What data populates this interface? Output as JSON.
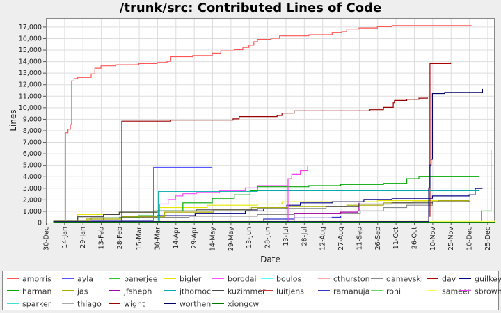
{
  "chart_data": {
    "type": "line",
    "title": "/trunk/src: Contributed Lines of Code",
    "xlabel": "Date",
    "ylabel": "Lines",
    "ylim": [
      0,
      17750
    ],
    "xlim": [
      "2007-12-30",
      "2008-12-31"
    ],
    "y_ticks": [
      0,
      1000,
      2000,
      3000,
      4000,
      5000,
      6000,
      7000,
      8000,
      9000,
      10000,
      11000,
      12000,
      13000,
      14000,
      15000,
      16000,
      17000
    ],
    "y_tick_labels": [
      "0",
      "1,000",
      "2,000",
      "3,000",
      "4,000",
      "5,000",
      "6,000",
      "7,000",
      "8,000",
      "9,000",
      "10,000",
      "11,000",
      "12,000",
      "13,000",
      "14,000",
      "15,000",
      "16,000",
      "17,000"
    ],
    "x_ticks": [
      {
        "date": "2007-12-30",
        "label": "30-Dec"
      },
      {
        "date": "2008-01-14",
        "label": "14-Jan"
      },
      {
        "date": "2008-01-29",
        "label": "29-Jan"
      },
      {
        "date": "2008-02-13",
        "label": "13-Feb"
      },
      {
        "date": "2008-02-28",
        "label": "28-Feb"
      },
      {
        "date": "2008-03-15",
        "label": "15-Mar"
      },
      {
        "date": "2008-03-30",
        "label": "30-Mar"
      },
      {
        "date": "2008-04-14",
        "label": "14-Apr"
      },
      {
        "date": "2008-04-29",
        "label": "29-Apr"
      },
      {
        "date": "2008-05-14",
        "label": "14-May"
      },
      {
        "date": "2008-05-29",
        "label": "29-May"
      },
      {
        "date": "2008-06-13",
        "label": "13-Jun"
      },
      {
        "date": "2008-06-28",
        "label": "28-Jun"
      },
      {
        "date": "2008-07-13",
        "label": "13-Jul"
      },
      {
        "date": "2008-07-28",
        "label": "28-Jul"
      },
      {
        "date": "2008-08-12",
        "label": "12-Aug"
      },
      {
        "date": "2008-08-27",
        "label": "27-Aug"
      },
      {
        "date": "2008-09-11",
        "label": "11-Sep"
      },
      {
        "date": "2008-09-26",
        "label": "26-Sep"
      },
      {
        "date": "2008-10-11",
        "label": "11-Oct"
      },
      {
        "date": "2008-10-26",
        "label": "26-Oct"
      },
      {
        "date": "2008-11-10",
        "label": "10-Nov"
      },
      {
        "date": "2008-11-25",
        "label": "25-Nov"
      },
      {
        "date": "2008-12-10",
        "label": "10-Dec"
      },
      {
        "date": "2008-12-25",
        "label": "25-Dec"
      }
    ],
    "grid": true,
    "legend_position": "bottom",
    "series": [
      {
        "name": "amorris",
        "color": "#ff5555",
        "points": [
          [
            "2008-01-15",
            0
          ],
          [
            "2008-01-15",
            7800
          ],
          [
            "2008-01-17",
            8100
          ],
          [
            "2008-01-19",
            8500
          ],
          [
            "2008-01-20",
            12300
          ],
          [
            "2008-01-22",
            12500
          ],
          [
            "2008-01-25",
            12600
          ],
          [
            "2008-02-05",
            12900
          ],
          [
            "2008-02-08",
            13400
          ],
          [
            "2008-02-13",
            13600
          ],
          [
            "2008-02-25",
            13700
          ],
          [
            "2008-03-15",
            13800
          ],
          [
            "2008-03-30",
            13900
          ],
          [
            "2008-04-07",
            14000
          ],
          [
            "2008-04-10",
            14400
          ],
          [
            "2008-04-28",
            14500
          ],
          [
            "2008-05-14",
            14700
          ],
          [
            "2008-05-21",
            14900
          ],
          [
            "2008-06-01",
            15000
          ],
          [
            "2008-06-08",
            15200
          ],
          [
            "2008-06-13",
            15400
          ],
          [
            "2008-06-17",
            15700
          ],
          [
            "2008-06-20",
            15900
          ],
          [
            "2008-07-01",
            16000
          ],
          [
            "2008-07-08",
            16200
          ],
          [
            "2008-08-01",
            16300
          ],
          [
            "2008-08-20",
            16500
          ],
          [
            "2008-08-28",
            16600
          ],
          [
            "2008-09-01",
            16800
          ],
          [
            "2008-09-11",
            16900
          ],
          [
            "2008-09-26",
            17000
          ],
          [
            "2008-10-08",
            17100
          ],
          [
            "2008-12-12",
            17100
          ]
        ]
      },
      {
        "name": "ayla",
        "color": "#5555ff",
        "points": [
          [
            "2008-02-01",
            150
          ],
          [
            "2008-03-27",
            150
          ],
          [
            "2008-03-27",
            4800
          ],
          [
            "2008-05-14",
            4800
          ]
        ]
      },
      {
        "name": "banerjee",
        "color": "#22cc22",
        "points": [
          [
            "2008-01-10",
            50
          ],
          [
            "2008-12-20",
            50
          ],
          [
            "2008-12-20",
            1000
          ],
          [
            "2008-12-25",
            1000
          ],
          [
            "2008-12-28",
            6300
          ]
        ]
      },
      {
        "name": "bigler",
        "color": "#e6e600",
        "points": [
          [
            "2008-01-05",
            150
          ],
          [
            "2008-01-20",
            150
          ],
          [
            "2008-01-25",
            700
          ],
          [
            "2008-02-28",
            900
          ],
          [
            "2008-04-01",
            1300
          ],
          [
            "2008-05-10",
            1500
          ],
          [
            "2008-06-05",
            1500
          ],
          [
            "2008-06-20",
            1600
          ],
          [
            "2008-07-10",
            1800
          ],
          [
            "2008-08-10",
            1800
          ],
          [
            "2008-09-26",
            1900
          ],
          [
            "2008-10-20",
            1900
          ],
          [
            "2008-12-10",
            2000
          ]
        ]
      },
      {
        "name": "borodai",
        "color": "#ff55ff",
        "points": [
          [
            "2008-01-05",
            30
          ],
          [
            "2008-04-01",
            30
          ],
          [
            "2008-04-01",
            1600
          ],
          [
            "2008-04-08",
            2000
          ],
          [
            "2008-04-14",
            2300
          ],
          [
            "2008-04-20",
            2500
          ],
          [
            "2008-05-01",
            2600
          ],
          [
            "2008-05-20",
            2800
          ],
          [
            "2008-06-10",
            3000
          ],
          [
            "2008-06-20",
            3200
          ],
          [
            "2008-07-15",
            3200
          ]
        ]
      },
      {
        "name": "boulos",
        "color": "#55ffff",
        "points": [
          [
            "2008-01-05",
            20
          ],
          [
            "2008-12-31",
            20
          ]
        ]
      },
      {
        "name": "cthurston",
        "color": "#ffaaaa",
        "points": [
          [
            "2008-01-05",
            10
          ],
          [
            "2008-12-31",
            10
          ]
        ]
      },
      {
        "name": "damevski",
        "color": "#888888",
        "points": [
          [
            "2008-01-05",
            150
          ],
          [
            "2008-02-05",
            150
          ],
          [
            "2008-02-05",
            400
          ],
          [
            "2008-02-28",
            450
          ],
          [
            "2008-04-25",
            550
          ],
          [
            "2008-06-20",
            700
          ],
          [
            "2008-07-20",
            800
          ],
          [
            "2008-09-12",
            1000
          ],
          [
            "2008-10-01",
            1300
          ],
          [
            "2008-10-20",
            1500
          ],
          [
            "2008-11-10",
            1800
          ],
          [
            "2008-12-10",
            1850
          ]
        ]
      },
      {
        "name": "dav",
        "color": "#aa0000",
        "points": [
          [
            "2008-11-08",
            500
          ],
          [
            "2008-11-08",
            13800
          ],
          [
            "2008-11-22",
            13800
          ],
          [
            "2008-11-25",
            13900
          ]
        ]
      },
      {
        "name": "guilkey",
        "color": "#000088",
        "points": [
          [
            "2008-01-05",
            80
          ],
          [
            "2008-03-01",
            80
          ],
          [
            "2008-03-01",
            500
          ],
          [
            "2008-03-30",
            600
          ],
          [
            "2008-04-30",
            800
          ],
          [
            "2008-06-10",
            1000
          ],
          [
            "2008-06-25",
            1200
          ],
          [
            "2008-07-10",
            1200
          ],
          [
            "2008-07-14",
            1500
          ],
          [
            "2008-07-25",
            1700
          ],
          [
            "2008-08-20",
            1800
          ],
          [
            "2008-09-15",
            2000
          ],
          [
            "2008-10-08",
            2100
          ],
          [
            "2008-11-10",
            2300
          ],
          [
            "2008-12-10",
            2400
          ],
          [
            "2008-12-15",
            2950
          ],
          [
            "2008-12-21",
            2950
          ]
        ]
      },
      {
        "name": "harman",
        "color": "#00aa00",
        "points": [
          [
            "2008-01-05",
            50
          ],
          [
            "2008-02-15",
            50
          ],
          [
            "2008-02-15",
            400
          ],
          [
            "2008-03-15",
            600
          ],
          [
            "2008-03-27",
            1000
          ],
          [
            "2008-04-20",
            1700
          ],
          [
            "2008-05-14",
            2100
          ],
          [
            "2008-06-01",
            2400
          ],
          [
            "2008-06-14",
            2800
          ],
          [
            "2008-06-20",
            3100
          ],
          [
            "2008-08-01",
            3200
          ],
          [
            "2008-08-27",
            3300
          ],
          [
            "2008-10-01",
            3400
          ],
          [
            "2008-10-20",
            3800
          ],
          [
            "2008-10-30",
            4000
          ],
          [
            "2008-12-18",
            4000
          ]
        ]
      },
      {
        "name": "jas",
        "color": "#aaaa00",
        "points": [
          [
            "2008-01-05",
            80
          ],
          [
            "2008-02-01",
            80
          ],
          [
            "2008-02-01",
            300
          ],
          [
            "2008-03-01",
            500
          ],
          [
            "2008-04-05",
            900
          ],
          [
            "2008-05-15",
            1100
          ],
          [
            "2008-06-15",
            1300
          ],
          [
            "2008-07-15",
            1400
          ],
          [
            "2008-09-01",
            1500
          ],
          [
            "2008-10-01",
            1700
          ],
          [
            "2008-10-25",
            1800
          ],
          [
            "2008-11-15",
            1900
          ],
          [
            "2008-12-10",
            1900
          ]
        ]
      },
      {
        "name": "jfsheph",
        "color": "#aa00aa",
        "points": [
          [
            "2008-01-05",
            20
          ],
          [
            "2008-07-10",
            20
          ],
          [
            "2008-07-20",
            800
          ],
          [
            "2008-08-27",
            900
          ],
          [
            "2008-09-10",
            1000
          ],
          [
            "2008-09-11",
            1700
          ]
        ]
      },
      {
        "name": "jthornoc",
        "color": "#00aaaa",
        "points": [
          [
            "2008-01-05",
            50
          ],
          [
            "2008-03-31",
            50
          ],
          [
            "2008-03-31",
            2700
          ],
          [
            "2008-06-14",
            2700
          ],
          [
            "2008-06-20",
            2800
          ],
          [
            "2008-12-18",
            2800
          ]
        ]
      },
      {
        "name": "kuzimmer",
        "color": "#444444",
        "points": [
          [
            "2008-01-05",
            100
          ],
          [
            "2008-01-25",
            100
          ],
          [
            "2008-01-25",
            500
          ],
          [
            "2008-02-15",
            700
          ],
          [
            "2008-02-28",
            900
          ],
          [
            "2008-03-30",
            1000
          ],
          [
            "2008-05-01",
            1100
          ],
          [
            "2008-06-20",
            1200
          ],
          [
            "2008-08-15",
            1400
          ],
          [
            "2008-09-10",
            1400
          ],
          [
            "2008-09-11",
            1600
          ],
          [
            "2008-10-08",
            1700
          ],
          [
            "2008-11-10",
            1800
          ],
          [
            "2008-12-10",
            1850
          ]
        ]
      },
      {
        "name": "luitjens",
        "color": "#cc3333",
        "points": [
          [
            "2008-01-05",
            0
          ],
          [
            "2008-12-31",
            0
          ]
        ]
      },
      {
        "name": "ramanuja",
        "color": "#3333cc",
        "points": [
          [
            "2008-01-05",
            0
          ],
          [
            "2008-06-25",
            0
          ],
          [
            "2008-06-25",
            300
          ],
          [
            "2008-07-20",
            400
          ],
          [
            "2008-08-20",
            450
          ],
          [
            "2008-08-27",
            550
          ]
        ]
      },
      {
        "name": "roni",
        "color": "#66dd66",
        "points": [
          [
            "2008-01-05",
            10
          ],
          [
            "2008-12-31",
            10
          ]
        ]
      },
      {
        "name": "sameer",
        "color": "#ffff55",
        "points": [
          [
            "2008-01-05",
            100
          ],
          [
            "2008-12-31",
            100
          ]
        ]
      },
      {
        "name": "sbrown",
        "color": "#ee44ee",
        "points": [
          [
            "2008-01-05",
            0
          ],
          [
            "2008-07-15",
            0
          ],
          [
            "2008-07-15",
            3800
          ],
          [
            "2008-07-18",
            4200
          ],
          [
            "2008-07-25",
            4500
          ],
          [
            "2008-07-31",
            4900
          ]
        ]
      },
      {
        "name": "sparker",
        "color": "#44dddd",
        "points": [
          [
            "2008-01-05",
            20
          ],
          [
            "2008-12-31",
            20
          ]
        ]
      },
      {
        "name": "thiago",
        "color": "#aaaaaa",
        "points": [
          [
            "2008-01-05",
            5
          ],
          [
            "2008-12-31",
            5
          ]
        ]
      },
      {
        "name": "wight",
        "color": "#990000",
        "points": [
          [
            "2008-01-05",
            0
          ],
          [
            "2008-03-01",
            0
          ],
          [
            "2008-03-01",
            8800
          ],
          [
            "2008-04-10",
            8900
          ],
          [
            "2008-05-31",
            9000
          ],
          [
            "2008-06-05",
            9200
          ],
          [
            "2008-07-06",
            9300
          ],
          [
            "2008-07-10",
            9500
          ],
          [
            "2008-07-20",
            9700
          ],
          [
            "2008-09-20",
            9800
          ],
          [
            "2008-10-01",
            10000
          ],
          [
            "2008-10-09",
            10400
          ],
          [
            "2008-10-10",
            10600
          ],
          [
            "2008-10-20",
            10700
          ],
          [
            "2008-10-30",
            10800
          ],
          [
            "2008-11-06",
            10850
          ]
        ]
      },
      {
        "name": "worthen",
        "color": "#000066",
        "points": [
          [
            "2008-01-05",
            80
          ],
          [
            "2008-10-25",
            80
          ],
          [
            "2008-11-07",
            3000
          ],
          [
            "2008-11-08",
            5000
          ],
          [
            "2008-11-09",
            5500
          ],
          [
            "2008-11-10",
            11200
          ],
          [
            "2008-11-20",
            11300
          ],
          [
            "2008-12-20",
            11300
          ],
          [
            "2008-12-21",
            11600
          ]
        ]
      },
      {
        "name": "xiongcw",
        "color": "#007700",
        "points": [
          [
            "2008-01-05",
            20
          ],
          [
            "2008-12-31",
            20
          ]
        ]
      }
    ]
  }
}
